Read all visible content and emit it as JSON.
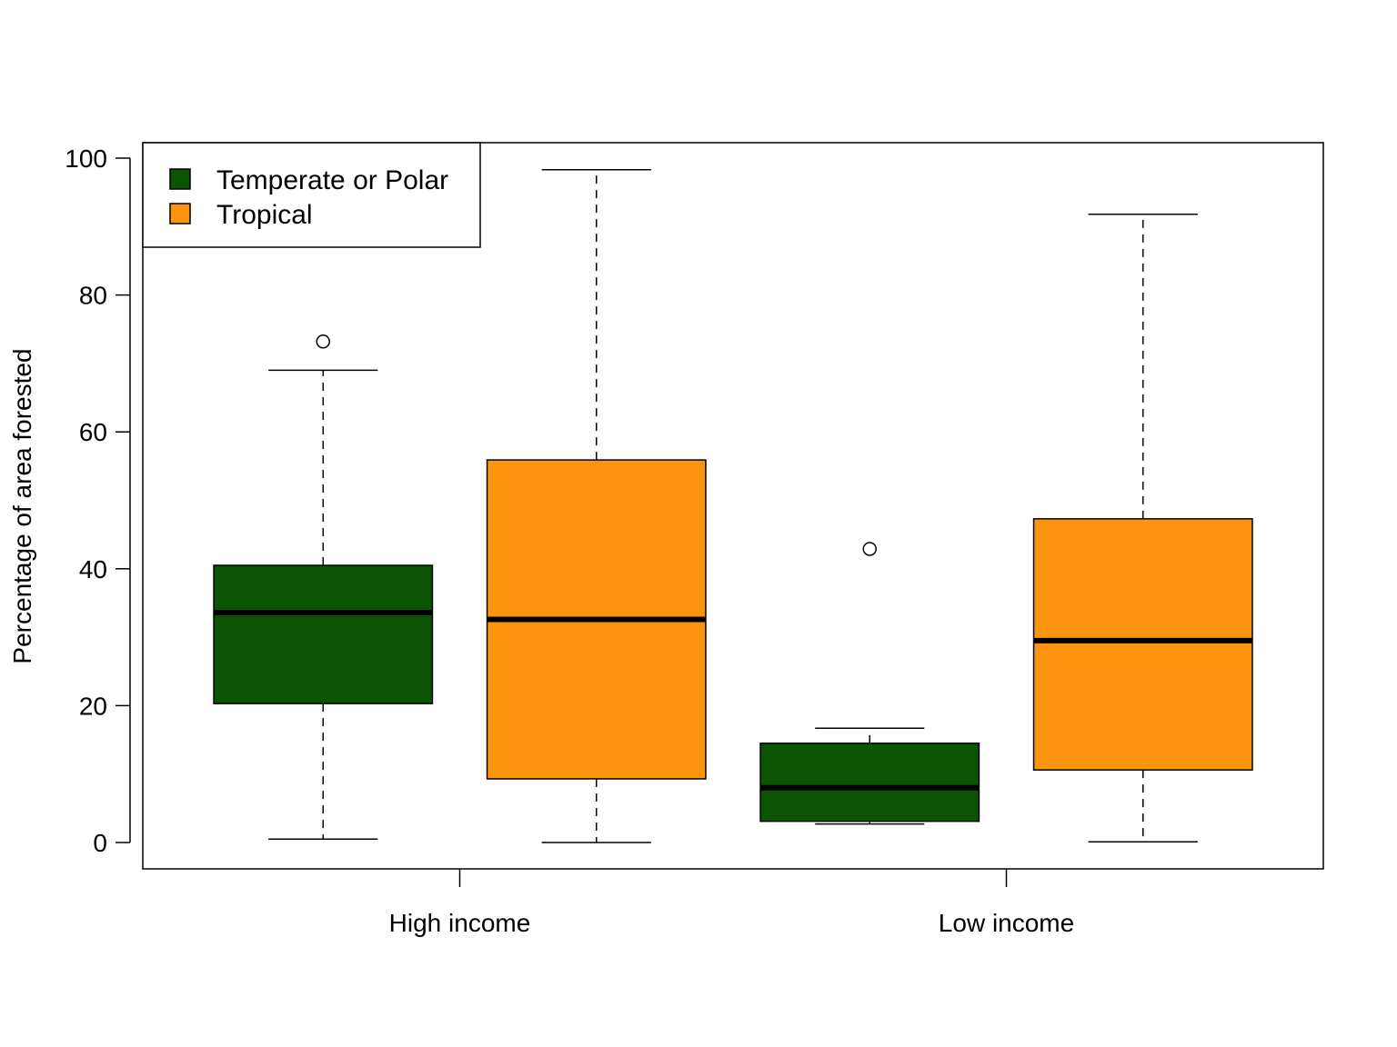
{
  "chart_data": {
    "type": "boxplot",
    "title": "",
    "xlabel": "",
    "ylabel": "Percentage of area forested",
    "ylim": [
      -3.7,
      102.3
    ],
    "yticks": [
      0,
      20,
      40,
      60,
      80,
      100
    ],
    "categories": [
      "High income",
      "Low income"
    ],
    "legend": {
      "position": "top-left",
      "entries": [
        "Temperate or Polar",
        "Tropical"
      ]
    },
    "series": [
      {
        "name": "Temperate or Polar",
        "color": "#0b5404",
        "boxes": [
          {
            "category": "High income",
            "whisker_low": 0.5,
            "q1": 20.3,
            "median": 33.6,
            "q3": 40.5,
            "whisker_high": 69.0,
            "outliers": [
              73.2
            ]
          },
          {
            "category": "Low income",
            "whisker_low": 2.7,
            "q1": 3.1,
            "median": 8.0,
            "q3": 14.5,
            "whisker_high": 16.7,
            "outliers": [
              42.9
            ]
          }
        ]
      },
      {
        "name": "Tropical",
        "color": "#fd940f",
        "boxes": [
          {
            "category": "High income",
            "whisker_low": 0.0,
            "q1": 9.3,
            "median": 32.6,
            "q3": 55.9,
            "whisker_high": 98.3,
            "outliers": []
          },
          {
            "category": "Low income",
            "whisker_low": 0.1,
            "q1": 10.6,
            "median": 29.5,
            "q3": 47.3,
            "whisker_high": 91.8,
            "outliers": []
          }
        ]
      }
    ],
    "grid": false
  }
}
